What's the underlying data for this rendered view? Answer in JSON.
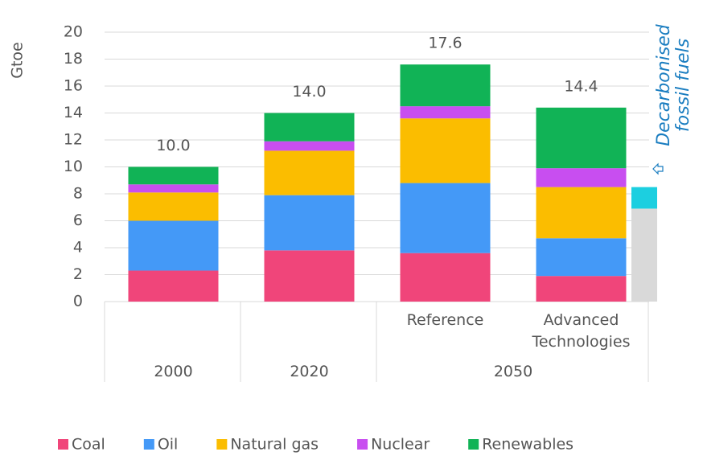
{
  "chart_data": {
    "type": "stacked_bar",
    "y_label": "Gtoe",
    "categories": [
      null,
      null,
      "Reference",
      "Advanced Technologies"
    ],
    "category_groups": [
      "2000",
      "2020",
      "2050",
      "2050"
    ],
    "series": [
      {
        "name": "Coal",
        "color": "#f0457a",
        "values": [
          2.3,
          3.8,
          3.6,
          1.9
        ]
      },
      {
        "name": "Oil",
        "color": "#4499f7",
        "values": [
          3.7,
          4.1,
          5.2,
          2.8
        ]
      },
      {
        "name": "Natural gas",
        "color": "#fbbd00",
        "values": [
          2.1,
          3.3,
          4.8,
          3.8
        ]
      },
      {
        "name": "Nuclear",
        "color": "#c84ef0",
        "values": [
          0.6,
          0.7,
          0.9,
          1.4
        ]
      },
      {
        "name": "Renewables",
        "color": "#11b356",
        "values": [
          1.3,
          2.1,
          3.1,
          4.5
        ]
      }
    ],
    "totals": [
      10.0,
      14.0,
      17.6,
      14.4
    ],
    "total_labels": [
      "10.0",
      "14.0",
      "17.6",
      "14.4"
    ],
    "side_bar": {
      "colors": [
        "#d9d9d9",
        "#1ccfe0"
      ],
      "values": [
        6.9,
        1.6
      ]
    },
    "annotation": "Decarbonised fossil fuels",
    "ylim": [
      0,
      20
    ],
    "yticks": [
      0,
      2,
      4,
      6,
      8,
      10,
      12,
      14,
      16,
      18,
      20
    ],
    "grid": true
  }
}
